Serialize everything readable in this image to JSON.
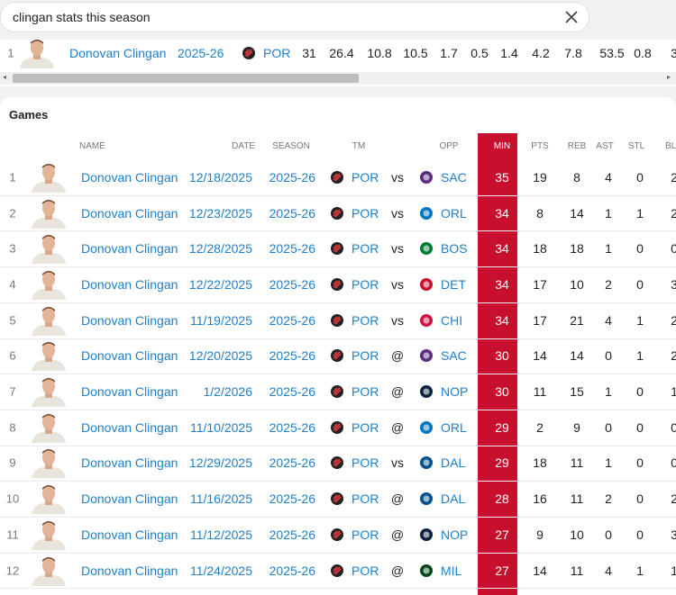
{
  "search": {
    "query": "clingan stats this season"
  },
  "summary": {
    "rank": "1",
    "name": "Donovan Clingan",
    "season": "2025-26",
    "team": "POR",
    "stats": [
      "31",
      "26.4",
      "10.8",
      "10.5",
      "1.7",
      "0.5",
      "1.4",
      "4.2",
      "7.8",
      "53.5",
      "0.8",
      "3"
    ]
  },
  "games": {
    "title": "Games",
    "columns": [
      "NAME",
      "DATE",
      "SEASON",
      "TM",
      "OPP",
      "MIN",
      "PTS",
      "REB",
      "AST",
      "STL",
      "BLK"
    ],
    "opp_logo_colors": [
      "#5a2d81",
      "#0077c0",
      "#007a33",
      "#c8102e",
      "#ce1141",
      "#5a2d81",
      "#0c2340",
      "#0077c0",
      "#00538c",
      "#00538c",
      "#0c2340",
      "#00471b"
    ],
    "rows": [
      [
        "1",
        "Donovan Clingan",
        "12/18/2025",
        "2025-26",
        "POR",
        "vs",
        "SAC",
        "35",
        "19",
        "8",
        "4",
        "0",
        "2"
      ],
      [
        "2",
        "Donovan Clingan",
        "12/23/2025",
        "2025-26",
        "POR",
        "vs",
        "ORL",
        "34",
        "8",
        "14",
        "1",
        "1",
        "2"
      ],
      [
        "3",
        "Donovan Clingan",
        "12/28/2025",
        "2025-26",
        "POR",
        "vs",
        "BOS",
        "34",
        "18",
        "18",
        "1",
        "0",
        "0"
      ],
      [
        "4",
        "Donovan Clingan",
        "12/22/2025",
        "2025-26",
        "POR",
        "vs",
        "DET",
        "34",
        "17",
        "10",
        "2",
        "0",
        "3"
      ],
      [
        "5",
        "Donovan Clingan",
        "11/19/2025",
        "2025-26",
        "POR",
        "vs",
        "CHI",
        "34",
        "17",
        "21",
        "4",
        "1",
        "2"
      ],
      [
        "6",
        "Donovan Clingan",
        "12/20/2025",
        "2025-26",
        "POR",
        "@",
        "SAC",
        "30",
        "14",
        "14",
        "0",
        "1",
        "2"
      ],
      [
        "7",
        "Donovan Clingan",
        "1/2/2026",
        "2025-26",
        "POR",
        "@",
        "NOP",
        "30",
        "11",
        "15",
        "1",
        "0",
        "1"
      ],
      [
        "8",
        "Donovan Clingan",
        "11/10/2025",
        "2025-26",
        "POR",
        "@",
        "ORL",
        "29",
        "2",
        "9",
        "0",
        "0",
        "0"
      ],
      [
        "9",
        "Donovan Clingan",
        "12/29/2025",
        "2025-26",
        "POR",
        "vs",
        "DAL",
        "29",
        "18",
        "11",
        "1",
        "0",
        "0"
      ],
      [
        "10",
        "Donovan Clingan",
        "11/16/2025",
        "2025-26",
        "POR",
        "@",
        "DAL",
        "28",
        "16",
        "11",
        "2",
        "0",
        "2"
      ],
      [
        "11",
        "Donovan Clingan",
        "11/12/2025",
        "2025-26",
        "POR",
        "@",
        "NOP",
        "27",
        "9",
        "10",
        "0",
        "0",
        "3"
      ],
      [
        "12",
        "Donovan Clingan",
        "11/24/2025",
        "2025-26",
        "POR",
        "@",
        "MIL",
        "27",
        "14",
        "11",
        "4",
        "1",
        "1"
      ]
    ]
  }
}
